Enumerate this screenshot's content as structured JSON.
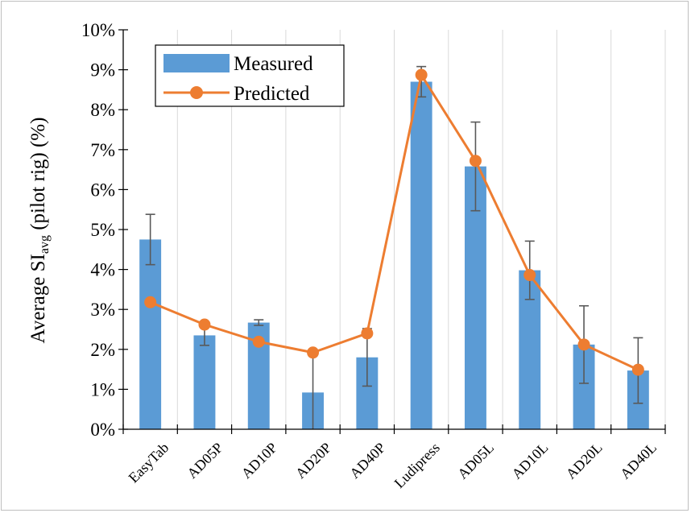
{
  "chart_data": {
    "type": "bar",
    "title": "",
    "ylabel_main": "Average SI",
    "ylabel_sub": "avg",
    "ylabel_rest": " (pilot rig) (%)",
    "xlabel": "",
    "ylim": [
      0,
      10
    ],
    "yticks": [
      "0%",
      "1%",
      "2%",
      "3%",
      "4%",
      "5%",
      "6%",
      "7%",
      "8%",
      "9%",
      "10%"
    ],
    "categories": [
      "EasyTab",
      "AD05P",
      "AD10P",
      "AD20P",
      "AD40P",
      "Ludipress",
      "AD05L",
      "AD10L",
      "AD20L",
      "AD40L"
    ],
    "series": [
      {
        "name": "Measured",
        "type": "bar",
        "color": "#5b9bd5",
        "values": [
          4.75,
          2.35,
          2.67,
          0.92,
          1.8,
          8.7,
          6.58,
          3.98,
          2.12,
          1.47
        ],
        "error": [
          0.63,
          0.25,
          0.07,
          0.92,
          0.72,
          0.38,
          1.11,
          0.73,
          0.97,
          0.82
        ]
      },
      {
        "name": "Predicted",
        "type": "line",
        "color": "#ed7d31",
        "values": [
          3.18,
          2.62,
          2.19,
          1.92,
          2.4,
          8.87,
          6.72,
          3.86,
          2.12,
          1.49
        ]
      }
    ],
    "legend_position": "top-left",
    "grid": "vertical"
  }
}
